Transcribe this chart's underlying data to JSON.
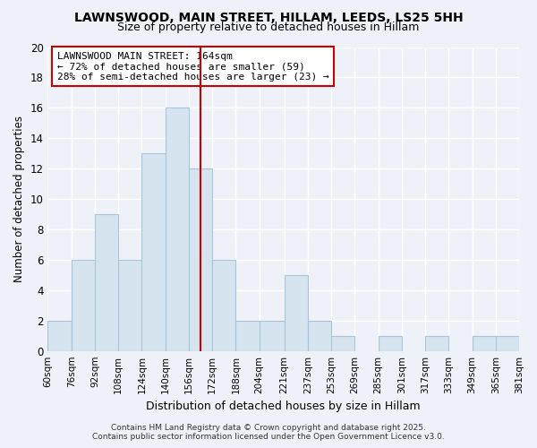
{
  "title": "LAWNSWOOD, MAIN STREET, HILLAM, LEEDS, LS25 5HH",
  "subtitle": "Size of property relative to detached houses in Hillam",
  "xlabel": "Distribution of detached houses by size in Hillam",
  "ylabel": "Number of detached properties",
  "annotation_line1": "LAWNSWOOD MAIN STREET: 164sqm",
  "annotation_line2": "← 72% of detached houses are smaller (59)",
  "annotation_line3": "28% of semi-detached houses are larger (23) →",
  "bar_color": "#d6e4f0",
  "bar_edge_color": "#a8c4d8",
  "vline_color": "#cc0000",
  "annotation_box_edge": "#cc0000",
  "background_color": "#eef2f8",
  "plot_bg_color": "#eef2f8",
  "grid_color": "#ffffff",
  "bins": [
    60,
    76,
    92,
    108,
    124,
    140,
    156,
    172,
    188,
    204,
    221,
    237,
    253,
    269,
    285,
    301,
    317,
    333,
    349,
    365,
    381
  ],
  "counts": [
    2,
    6,
    9,
    6,
    13,
    16,
    12,
    6,
    2,
    2,
    5,
    2,
    1,
    0,
    1,
    0,
    1,
    0,
    1,
    1
  ],
  "vline_x": 164,
  "ylim": [
    0,
    20
  ],
  "yticks": [
    0,
    2,
    4,
    6,
    8,
    10,
    12,
    14,
    16,
    18,
    20
  ],
  "tick_labels": [
    "60sqm",
    "76sqm",
    "92sqm",
    "108sqm",
    "124sqm",
    "140sqm",
    "156sqm",
    "172sqm",
    "188sqm",
    "204sqm",
    "221sqm",
    "237sqm",
    "253sqm",
    "269sqm",
    "285sqm",
    "301sqm",
    "317sqm",
    "333sqm",
    "349sqm",
    "365sqm",
    "381sqm"
  ],
  "footer1": "Contains HM Land Registry data © Crown copyright and database right 2025.",
  "footer2": "Contains public sector information licensed under the Open Government Licence v3.0."
}
